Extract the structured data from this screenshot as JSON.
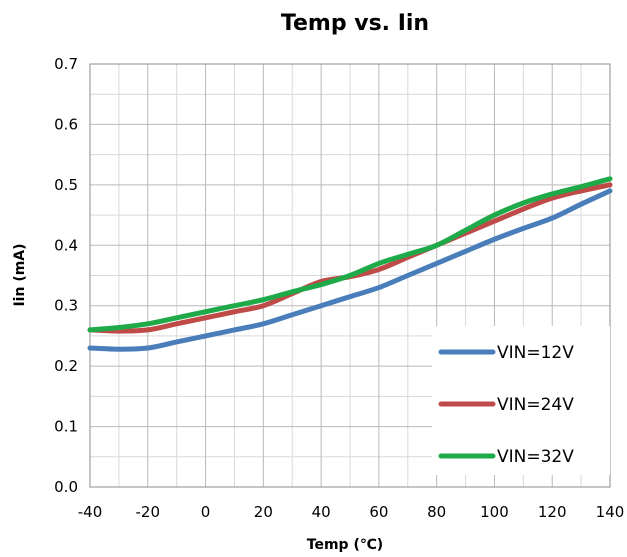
{
  "chart_data": {
    "type": "line",
    "title": "Temp vs. Iin",
    "xlabel": "Temp (℃)",
    "ylabel": "Iin (mA)",
    "xlim": [
      -40,
      140
    ],
    "ylim": [
      0.0,
      0.7
    ],
    "x_ticks": [
      -40,
      -20,
      0,
      20,
      40,
      60,
      80,
      100,
      120,
      140
    ],
    "x_tick_labels": [
      "-40",
      "-20",
      "0",
      "20",
      "40",
      "60",
      "80",
      "100",
      "120",
      "140"
    ],
    "y_ticks": [
      0.0,
      0.1,
      0.2,
      0.3,
      0.4,
      0.5,
      0.6,
      0.7
    ],
    "y_tick_labels": [
      "0.0",
      "0.1",
      "0.2",
      "0.3",
      "0.4",
      "0.5",
      "0.6",
      "0.7"
    ],
    "x_minor_gridlines": [
      -30,
      -10,
      10,
      30,
      50,
      70,
      90,
      110,
      130
    ],
    "y_minor_gridlines": [
      0.05,
      0.15,
      0.25,
      0.35,
      0.45,
      0.55,
      0.65
    ],
    "grid": true,
    "legend_position": "bottom-right",
    "x": [
      -40,
      -30,
      -20,
      -10,
      0,
      10,
      20,
      30,
      40,
      50,
      60,
      70,
      80,
      90,
      100,
      110,
      120,
      130,
      140
    ],
    "series": [
      {
        "name": "VIN=12V",
        "color": "#4a7ebb",
        "values": [
          0.23,
          0.228,
          0.23,
          0.24,
          0.25,
          0.26,
          0.27,
          0.285,
          0.3,
          0.315,
          0.33,
          0.35,
          0.37,
          0.39,
          0.41,
          0.428,
          0.445,
          0.468,
          0.49
        ]
      },
      {
        "name": "VIN=24V",
        "color": "#be4b48",
        "values": [
          0.26,
          0.258,
          0.26,
          0.27,
          0.28,
          0.29,
          0.3,
          0.32,
          0.34,
          0.348,
          0.36,
          0.38,
          0.4,
          0.42,
          0.44,
          0.46,
          0.478,
          0.49,
          0.5
        ]
      },
      {
        "name": "VIN=32V",
        "color": "#1faa4a",
        "values": [
          0.26,
          0.264,
          0.27,
          0.28,
          0.29,
          0.3,
          0.31,
          0.323,
          0.335,
          0.35,
          0.37,
          0.385,
          0.4,
          0.425,
          0.45,
          0.47,
          0.485,
          0.497,
          0.51
        ]
      }
    ]
  }
}
